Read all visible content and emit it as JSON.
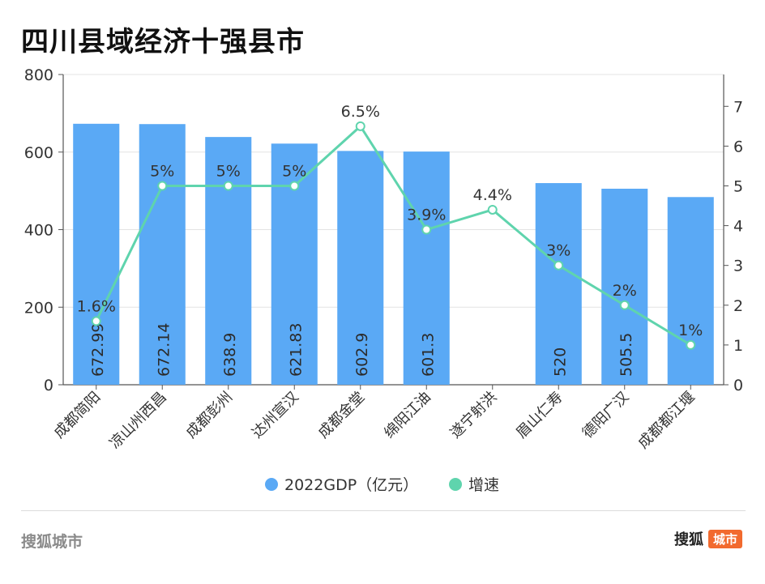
{
  "title": "四川县域经济十强县市",
  "footer": {
    "source": "搜狐城市",
    "logo_text": "搜狐",
    "logo_badge": "城市"
  },
  "chart_data": {
    "type": "bar+line",
    "categories": [
      "成都简阳",
      "凉山州西昌",
      "成都彭州",
      "达州宣汉",
      "成都金堂",
      "绵阳江油",
      "遂宁射洪",
      "眉山仁寿",
      "德阳广汉",
      "成都都江堰"
    ],
    "series": [
      {
        "name": "2022GDP（亿元）",
        "type": "bar",
        "axis": "left",
        "color": "#5aa9f5",
        "values": [
          672.99,
          672.14,
          638.9,
          621.83,
          602.9,
          601.3,
          null,
          520,
          505.5,
          484
        ],
        "labels": [
          "672.99",
          "672.14",
          "638.9",
          "621.83",
          "602.9",
          "601.3",
          "",
          "520",
          "505.5",
          ""
        ]
      },
      {
        "name": "增速",
        "type": "line",
        "axis": "right",
        "color": "#5fd4ad",
        "values": [
          1.6,
          5,
          5,
          5,
          6.5,
          3.9,
          4.4,
          3,
          2,
          1
        ],
        "labels": [
          "1.6%",
          "5%",
          "5%",
          "5%",
          "6.5%",
          "3.9%",
          "4.4%",
          "3%",
          "2%",
          "1%"
        ]
      }
    ],
    "left_axis": {
      "ylim": [
        0,
        800
      ],
      "ticks": [
        "0",
        "200",
        "400",
        "600",
        "800"
      ]
    },
    "right_axis": {
      "ylim": [
        0,
        7.8
      ],
      "ticks": [
        "0",
        "1",
        "2",
        "3",
        "4",
        "5",
        "6",
        "7"
      ]
    },
    "grid": true,
    "legend": "bottom-center"
  }
}
